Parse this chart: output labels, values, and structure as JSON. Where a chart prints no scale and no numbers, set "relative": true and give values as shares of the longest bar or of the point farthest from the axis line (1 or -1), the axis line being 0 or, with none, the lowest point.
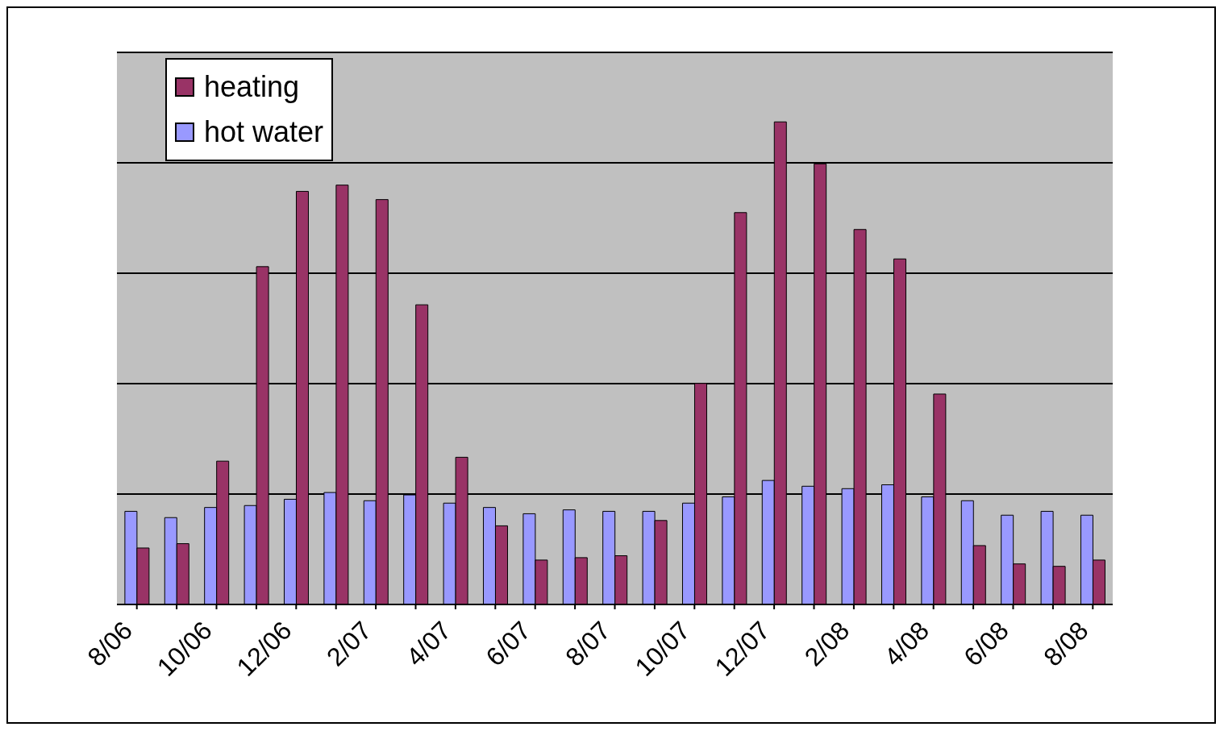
{
  "chart_data": {
    "type": "bar",
    "relative": true,
    "grid": "y",
    "legend": "top left",
    "categories": [
      "8/06",
      null,
      "10/06",
      null,
      "12/06",
      null,
      "2/07",
      null,
      "4/07",
      null,
      "6/07",
      null,
      "8/07",
      null,
      "10/07",
      null,
      "12/07",
      null,
      "2/08",
      null,
      "4/08",
      null,
      "6/08",
      null,
      "8/08"
    ],
    "series": [
      {
        "name": "hot water",
        "color": "#9999ff",
        "values": [
          0.193,
          0.18,
          0.201,
          0.205,
          0.218,
          0.232,
          0.215,
          0.227,
          0.21,
          0.201,
          0.188,
          0.196,
          0.193,
          0.193,
          0.21,
          0.223,
          0.257,
          0.245,
          0.24,
          0.248,
          0.223,
          0.215,
          0.185,
          0.193,
          0.185
        ]
      },
      {
        "name": "heating",
        "color": "#993366",
        "values": [
          0.117,
          0.126,
          0.297,
          0.7,
          0.856,
          0.869,
          0.839,
          0.621,
          0.305,
          0.163,
          0.092,
          0.097,
          0.101,
          0.174,
          0.458,
          0.812,
          1,
          0.913,
          0.777,
          0.716,
          0.436,
          0.122,
          0.084,
          0.079,
          0.092
        ]
      }
    ]
  }
}
